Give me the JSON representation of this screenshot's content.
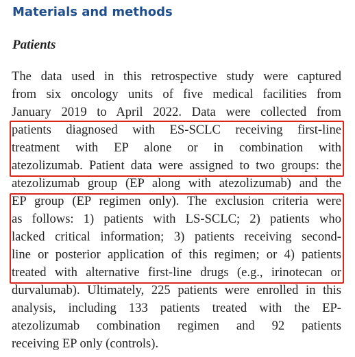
{
  "section_heading": "Materials and methods",
  "subsection_heading": "Patients",
  "paragraph_lines": [
    "The data used in this retrospective study were captured",
    "from six oncology units of five medical facilities from",
    "January 2019 to April 2022. Data were collected from",
    "patients diagnosed with ES-SCLC receiving first-line",
    "treatment with EP alone or in combination with",
    "atezolizumab. Patient data were assigned to two groups: the",
    "atezolizumab group (EP along with atezolizumab) and the",
    "EP group (EP regimen only). The exclusion criteria were",
    "as follows: 1) patients with LS-SCLC; 2) patients who",
    "lacked critical information; 3) patients receiving second-",
    "line or posterior application of this regimen; or 4) patients",
    "treated with alternative first-line drugs (e.g., irinotecan or",
    "durvalumab). Ultimately, 225 patients were enrolled in this",
    "analysis, including 133 patients treated with the EP-",
    "atezolizumab combination regimen and 92 patients",
    "receiving EP only (controls)."
  ]
}
